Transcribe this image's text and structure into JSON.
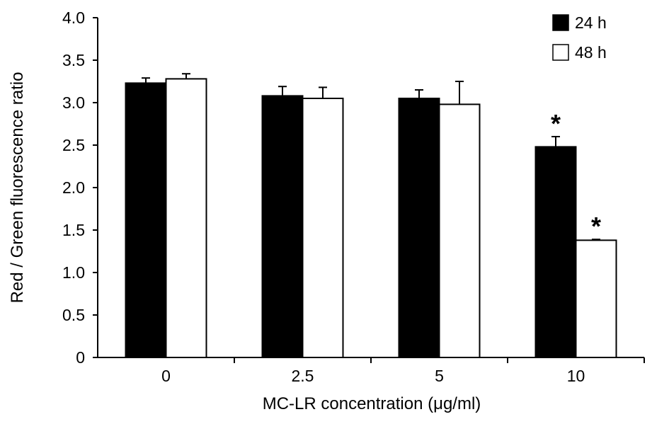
{
  "chart_data": {
    "type": "bar",
    "xlabel": "MC-LR concentration (μg/ml)",
    "ylabel": "Red / Green fluorescence ratio",
    "categories": [
      "0",
      "2.5",
      "5",
      "10"
    ],
    "ylim": [
      0,
      4.0
    ],
    "yticks": [
      "0",
      "0.5",
      "1.0",
      "1.5",
      "2.0",
      "2.5",
      "3.0",
      "3.5",
      "4.0"
    ],
    "series": [
      {
        "name": "24 h",
        "fill": "#000000",
        "values": [
          3.23,
          3.08,
          3.05,
          2.48
        ],
        "errors": [
          0.06,
          0.11,
          0.1,
          0.12
        ],
        "significance": [
          "",
          "",
          "",
          "*"
        ]
      },
      {
        "name": "48 h",
        "fill": "#ffffff",
        "values": [
          3.28,
          3.05,
          2.98,
          1.38
        ],
        "errors": [
          0.06,
          0.13,
          0.27,
          0.01
        ],
        "significance": [
          "",
          "",
          "",
          "*"
        ]
      }
    ],
    "grid": false,
    "legend": "top-right"
  }
}
